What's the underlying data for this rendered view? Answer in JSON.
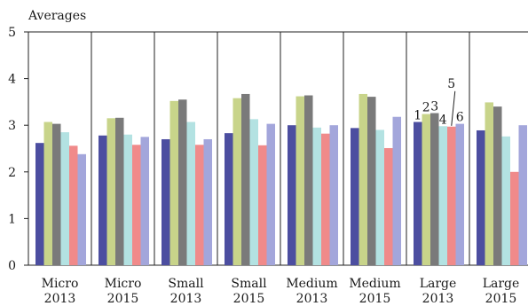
{
  "chart_data": {
    "type": "bar",
    "ylabel": "Averages",
    "ylim": [
      0,
      5
    ],
    "yticks": [
      0,
      1,
      2,
      3,
      4,
      5
    ],
    "grid": false,
    "categories": [
      [
        "Micro",
        "2013"
      ],
      [
        "Micro",
        "2015"
      ],
      [
        "Small",
        "2013"
      ],
      [
        "Small",
        "2015"
      ],
      [
        "Medium",
        "2013"
      ],
      [
        "Medium",
        "2015"
      ],
      [
        "Large",
        "2013"
      ],
      [
        "Large",
        "2015"
      ]
    ],
    "series": [
      {
        "name": "1",
        "color": "#4c4ea0",
        "values": [
          2.62,
          2.78,
          2.7,
          2.83,
          3.0,
          2.94,
          3.07,
          2.89
        ]
      },
      {
        "name": "2",
        "color": "#c8d48a",
        "values": [
          3.07,
          3.15,
          3.52,
          3.58,
          3.62,
          3.67,
          3.24,
          3.49
        ]
      },
      {
        "name": "3",
        "color": "#7a7a7a",
        "values": [
          3.03,
          3.16,
          3.55,
          3.67,
          3.64,
          3.61,
          3.26,
          3.4
        ]
      },
      {
        "name": "4",
        "color": "#b3e2e2",
        "values": [
          2.85,
          2.8,
          3.07,
          3.13,
          2.95,
          2.9,
          2.98,
          2.76
        ]
      },
      {
        "name": "5",
        "color": "#f08a8a",
        "values": [
          2.56,
          2.58,
          2.58,
          2.57,
          2.82,
          2.51,
          2.97,
          2.0
        ]
      },
      {
        "name": "6",
        "color": "#a3a6db",
        "values": [
          2.38,
          2.75,
          2.7,
          3.03,
          3.0,
          3.18,
          3.03,
          3.0
        ]
      }
    ],
    "bar_labels_category": [
      "Large",
      "2013"
    ],
    "bar_labels": [
      "1",
      "2",
      "3",
      "4",
      "5",
      "6"
    ]
  }
}
